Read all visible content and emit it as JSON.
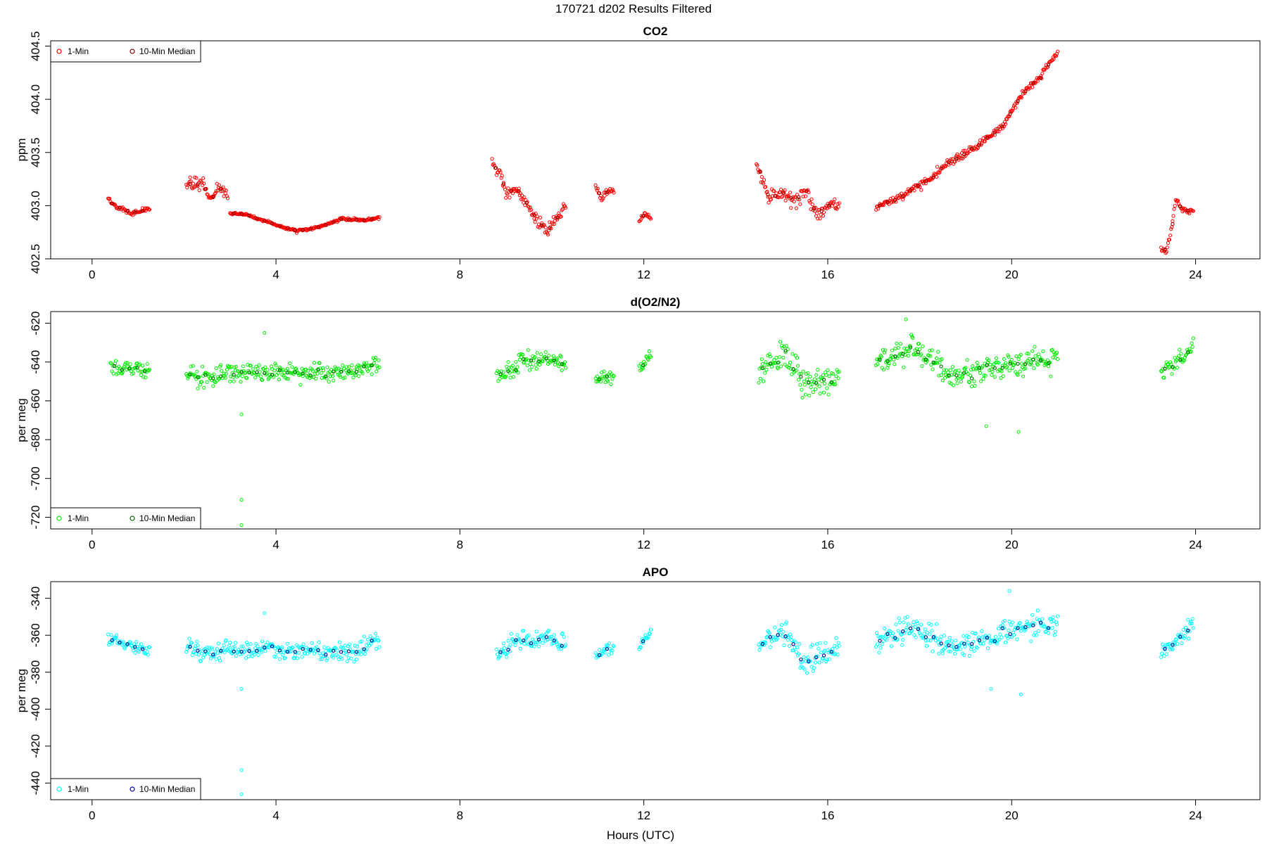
{
  "figure": {
    "title": "170721    d202    Results Filtered",
    "xlabel": "Hours (UTC)"
  },
  "legend_labels": {
    "one_min": "1-Min",
    "median": "10-Min Median"
  },
  "chart_data": [
    {
      "type": "scatter",
      "title": "CO2",
      "ylabel": "ppm",
      "xlim": [
        -0.9,
        25.4
      ],
      "ylim": [
        402.5,
        404.55
      ],
      "xticks": [
        0,
        4,
        8,
        12,
        16,
        20,
        24
      ],
      "yticks": [
        402.5,
        403.0,
        403.5,
        404.0,
        404.5
      ],
      "ytick_labels": [
        "402.5",
        "403.0",
        "403.5",
        "404.0",
        "404.5"
      ],
      "legend_position": "top-left",
      "series": [
        {
          "name": "1-Min",
          "color": "#ff0000",
          "marker": "open-circle",
          "segments": [
            {
              "x0": 0.35,
              "x1": 1.25,
              "pts": [
                [
                  0.0,
                  403.07
                ],
                [
                  0.15,
                  403.0
                ],
                [
                  0.35,
                  402.97
                ],
                [
                  0.55,
                  402.93
                ],
                [
                  0.75,
                  402.95
                ],
                [
                  1.0,
                  402.97
                ]
              ],
              "noise": 0.02
            },
            {
              "x0": 2.05,
              "x1": 2.95,
              "pts": [
                [
                  0.0,
                  403.2
                ],
                [
                  0.25,
                  403.22
                ],
                [
                  0.45,
                  403.15
                ],
                [
                  0.6,
                  403.05
                ],
                [
                  0.8,
                  403.18
                ],
                [
                  1.0,
                  403.08
                ]
              ],
              "noise": 0.06
            },
            {
              "x0": 3.0,
              "x1": 6.25,
              "pts": [
                [
                  0.0,
                  402.93
                ],
                [
                  0.1,
                  402.92
                ],
                [
                  0.3,
                  402.82
                ],
                [
                  0.45,
                  402.76
                ],
                [
                  0.6,
                  402.8
                ],
                [
                  0.75,
                  402.88
                ],
                [
                  0.9,
                  402.86
                ],
                [
                  1.0,
                  402.89
                ]
              ],
              "noise": 0.012
            },
            {
              "x0": 8.7,
              "x1": 10.3,
              "pts": [
                [
                  0.0,
                  403.4
                ],
                [
                  0.1,
                  403.3
                ],
                [
                  0.2,
                  403.1
                ],
                [
                  0.35,
                  403.15
                ],
                [
                  0.55,
                  402.92
                ],
                [
                  0.75,
                  402.75
                ],
                [
                  0.85,
                  402.85
                ],
                [
                  1.0,
                  403.0
                ]
              ],
              "noise": 0.05
            },
            {
              "x0": 10.95,
              "x1": 11.35,
              "pts": [
                [
                  0.0,
                  403.18
                ],
                [
                  0.35,
                  403.05
                ],
                [
                  0.6,
                  403.14
                ],
                [
                  1.0,
                  403.14
                ]
              ],
              "noise": 0.03
            },
            {
              "x0": 11.9,
              "x1": 12.15,
              "pts": [
                [
                  0.0,
                  402.85
                ],
                [
                  0.5,
                  402.92
                ],
                [
                  1.0,
                  402.88
                ]
              ],
              "noise": 0.02
            },
            {
              "x0": 14.45,
              "x1": 16.25,
              "pts": [
                [
                  0.0,
                  403.4
                ],
                [
                  0.15,
                  403.1
                ],
                [
                  0.3,
                  403.12
                ],
                [
                  0.45,
                  403.05
                ],
                [
                  0.6,
                  403.1
                ],
                [
                  0.75,
                  402.9
                ],
                [
                  0.9,
                  403.05
                ],
                [
                  1.0,
                  402.98
                ]
              ],
              "noise": 0.07
            },
            {
              "x0": 17.05,
              "x1": 21.0,
              "pts": [
                [
                  0.0,
                  402.98
                ],
                [
                  0.1,
                  403.05
                ],
                [
                  0.25,
                  403.2
                ],
                [
                  0.4,
                  403.4
                ],
                [
                  0.55,
                  403.55
                ],
                [
                  0.7,
                  403.75
                ],
                [
                  0.8,
                  404.05
                ],
                [
                  0.9,
                  404.2
                ],
                [
                  1.0,
                  404.45
                ]
              ],
              "noise": 0.035
            },
            {
              "x0": 23.25,
              "x1": 23.95,
              "pts": [
                [
                  0.0,
                  402.6
                ],
                [
                  0.15,
                  402.55
                ],
                [
                  0.3,
                  402.75
                ],
                [
                  0.45,
                  403.05
                ],
                [
                  0.65,
                  402.97
                ],
                [
                  1.0,
                  402.95
                ]
              ],
              "noise": 0.03
            }
          ]
        },
        {
          "name": "10-Min Median",
          "color": "#8b0000",
          "marker": "open-circle",
          "from_segments": true
        }
      ]
    },
    {
      "type": "scatter",
      "title": "d(O2/N2)",
      "ylabel": "per meg",
      "xlim": [
        -0.9,
        25.4
      ],
      "ylim": [
        -726,
        -614
      ],
      "xticks": [
        0,
        4,
        8,
        12,
        16,
        20,
        24
      ],
      "yticks": [
        -720,
        -700,
        -680,
        -660,
        -640,
        -620
      ],
      "ytick_labels": [
        "-720",
        "-700",
        "-680",
        "-660",
        "-640",
        "-620"
      ],
      "legend_position": "bottom-left",
      "series": [
        {
          "name": "1-Min",
          "color": "#00ee00",
          "marker": "open-circle",
          "segments": [
            {
              "x0": 0.4,
              "x1": 1.25,
              "pts": [
                [
                  0.0,
                  -642
                ],
                [
                  0.5,
                  -643
                ],
                [
                  1.0,
                  -646
                ]
              ],
              "noise": 4
            },
            {
              "x0": 2.05,
              "x1": 3.0,
              "pts": [
                [
                  0.0,
                  -646
                ],
                [
                  0.5,
                  -649
                ],
                [
                  1.0,
                  -644
                ]
              ],
              "noise": 5
            },
            {
              "x0": 3.0,
              "x1": 6.25,
              "pts": [
                [
                  0.0,
                  -646
                ],
                [
                  0.3,
                  -645
                ],
                [
                  0.6,
                  -646
                ],
                [
                  0.85,
                  -645
                ],
                [
                  1.0,
                  -640
                ]
              ],
              "noise": 4.5
            },
            {
              "x0": 8.8,
              "x1": 10.3,
              "pts": [
                [
                  0.0,
                  -648
                ],
                [
                  0.4,
                  -640
                ],
                [
                  0.7,
                  -639
                ],
                [
                  1.0,
                  -641
                ]
              ],
              "noise": 5
            },
            {
              "x0": 10.95,
              "x1": 11.35,
              "pts": [
                [
                  0.0,
                  -649
                ],
                [
                  1.0,
                  -648
                ]
              ],
              "noise": 3
            },
            {
              "x0": 11.9,
              "x1": 12.15,
              "pts": [
                [
                  0.0,
                  -643
                ],
                [
                  1.0,
                  -636
                ]
              ],
              "noise": 3
            },
            {
              "x0": 14.5,
              "x1": 16.25,
              "pts": [
                [
                  0.0,
                  -646
                ],
                [
                  0.3,
                  -636
                ],
                [
                  0.6,
                  -652
                ],
                [
                  1.0,
                  -645
                ]
              ],
              "noise": 7
            },
            {
              "x0": 17.05,
              "x1": 21.0,
              "pts": [
                [
                  0.0,
                  -641
                ],
                [
                  0.2,
                  -633
                ],
                [
                  0.4,
                  -647
                ],
                [
                  0.6,
                  -644
                ],
                [
                  0.8,
                  -641
                ],
                [
                  1.0,
                  -638
                ]
              ],
              "noise": 6
            },
            {
              "x0": 23.25,
              "x1": 23.95,
              "pts": [
                [
                  0.0,
                  -645
                ],
                [
                  0.5,
                  -639
                ],
                [
                  1.0,
                  -632
                ]
              ],
              "noise": 4
            }
          ],
          "outliers": [
            [
              3.25,
              -667
            ],
            [
              3.25,
              -711
            ],
            [
              3.25,
              -724
            ],
            [
              3.75,
              -625
            ],
            [
              19.45,
              -673
            ],
            [
              20.15,
              -676
            ],
            [
              17.7,
              -618
            ]
          ]
        },
        {
          "name": "10-Min Median",
          "color": "#006400",
          "marker": "open-circle",
          "from_segments": true
        }
      ]
    },
    {
      "type": "scatter",
      "title": "APO",
      "ylabel": "per meg",
      "xlim": [
        -0.9,
        25.4
      ],
      "ylim": [
        -449,
        -331
      ],
      "xticks": [
        0,
        4,
        8,
        12,
        16,
        20,
        24
      ],
      "yticks": [
        -440,
        -420,
        -400,
        -380,
        -360,
        -340
      ],
      "ytick_labels": [
        "-440",
        "-420",
        "-400",
        "-380",
        "-360",
        "-340"
      ],
      "legend_position": "bottom-left",
      "series": [
        {
          "name": "1-Min",
          "color": "#00ffff",
          "marker": "open-circle",
          "segments": [
            {
              "x0": 0.35,
              "x1": 1.25,
              "pts": [
                [
                  0.0,
                  -363
                ],
                [
                  0.5,
                  -365
                ],
                [
                  1.0,
                  -368
                ]
              ],
              "noise": 4
            },
            {
              "x0": 2.05,
              "x1": 3.0,
              "pts": [
                [
                  0.0,
                  -366
                ],
                [
                  0.5,
                  -371
                ],
                [
                  1.0,
                  -366
                ]
              ],
              "noise": 5
            },
            {
              "x0": 3.0,
              "x1": 6.25,
              "pts": [
                [
                  0.0,
                  -368
                ],
                [
                  0.3,
                  -368
                ],
                [
                  0.6,
                  -369
                ],
                [
                  0.85,
                  -369
                ],
                [
                  1.0,
                  -362
                ]
              ],
              "noise": 4.5
            },
            {
              "x0": 8.8,
              "x1": 10.3,
              "pts": [
                [
                  0.0,
                  -370
                ],
                [
                  0.4,
                  -362
                ],
                [
                  0.7,
                  -362
                ],
                [
                  1.0,
                  -363
                ]
              ],
              "noise": 5
            },
            {
              "x0": 10.95,
              "x1": 11.35,
              "pts": [
                [
                  0.0,
                  -371
                ],
                [
                  1.0,
                  -367
                ]
              ],
              "noise": 3
            },
            {
              "x0": 11.9,
              "x1": 12.15,
              "pts": [
                [
                  0.0,
                  -365
                ],
                [
                  1.0,
                  -358
                ]
              ],
              "noise": 3
            },
            {
              "x0": 14.5,
              "x1": 16.25,
              "pts": [
                [
                  0.0,
                  -366
                ],
                [
                  0.3,
                  -358
                ],
                [
                  0.6,
                  -376
                ],
                [
                  1.0,
                  -367
                ]
              ],
              "noise": 7
            },
            {
              "x0": 17.05,
              "x1": 21.0,
              "pts": [
                [
                  0.0,
                  -364
                ],
                [
                  0.2,
                  -355
                ],
                [
                  0.4,
                  -367
                ],
                [
                  0.6,
                  -362
                ],
                [
                  0.8,
                  -357
                ],
                [
                  1.0,
                  -352
                ]
              ],
              "noise": 6
            },
            {
              "x0": 23.25,
              "x1": 23.95,
              "pts": [
                [
                  0.0,
                  -369
                ],
                [
                  0.5,
                  -362
                ],
                [
                  1.0,
                  -355
                ]
              ],
              "noise": 4
            }
          ],
          "outliers": [
            [
              3.25,
              -389
            ],
            [
              3.25,
              -433
            ],
            [
              3.25,
              -446
            ],
            [
              3.75,
              -348
            ],
            [
              19.55,
              -389
            ],
            [
              20.2,
              -392
            ],
            [
              19.95,
              -336
            ]
          ]
        },
        {
          "name": "10-Min Median",
          "color": "#00008b",
          "marker": "open-circle",
          "from_segments": true
        }
      ]
    }
  ]
}
